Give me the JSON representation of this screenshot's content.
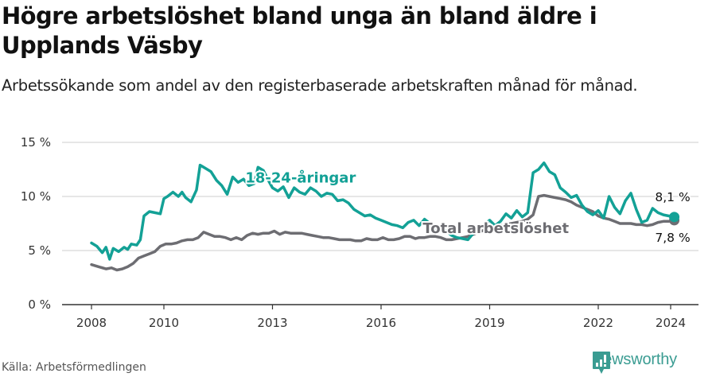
{
  "header": {
    "title": "Högre arbetslöshet bland unga än bland äldre i Upplands Väsby",
    "subtitle": "Arbetssökande som andel av den registerbaserade arbetskraften månad för månad."
  },
  "footer": {
    "source": "Källa: Arbetsförmedlingen",
    "brand": "Newsworthy",
    "brand_icon": "bar-chart-speech-bubble-icon",
    "brand_color": "#3a9c92"
  },
  "chart_data": {
    "type": "line",
    "title": "Högre arbetslöshet bland unga än bland äldre i Upplands Väsby",
    "subtitle": "Arbetssökande som andel av den registerbaserade arbetskraften månad för månad.",
    "xlabel": "",
    "ylabel": "",
    "ylim": [
      0,
      15
    ],
    "xlim": [
      2007.5,
      2024.8
    ],
    "grid": true,
    "y_ticks": [
      0,
      5,
      10,
      15
    ],
    "y_tick_labels": [
      "0 %",
      "5 %",
      "10 %",
      "15 %"
    ],
    "x_ticks": [
      2008,
      2010,
      2013,
      2016,
      2019,
      2022,
      2024
    ],
    "x_tick_labels": [
      "2008",
      "2010",
      "2013",
      "2016",
      "2019",
      "2022",
      "2024"
    ],
    "series": [
      {
        "name": "18-24-åringar",
        "color": "#13a196",
        "label_pos": [
          2012.25,
          11.3
        ],
        "end_label": "8,1 %",
        "x": [
          2008.0,
          2008.15,
          2008.3,
          2008.4,
          2008.5,
          2008.6,
          2008.75,
          2008.9,
          2009.0,
          2009.1,
          2009.25,
          2009.35,
          2009.45,
          2009.6,
          2009.75,
          2009.9,
          2010.0,
          2010.1,
          2010.25,
          2010.4,
          2010.5,
          2010.6,
          2010.75,
          2010.9,
          2011.0,
          2011.15,
          2011.3,
          2011.45,
          2011.6,
          2011.75,
          2011.9,
          2012.05,
          2012.2,
          2012.35,
          2012.5,
          2012.6,
          2012.75,
          2012.9,
          2013.0,
          2013.15,
          2013.3,
          2013.45,
          2013.6,
          2013.75,
          2013.9,
          2014.05,
          2014.2,
          2014.35,
          2014.5,
          2014.65,
          2014.8,
          2014.95,
          2015.1,
          2015.25,
          2015.4,
          2015.55,
          2015.7,
          2015.85,
          2016.0,
          2016.15,
          2016.3,
          2016.45,
          2016.6,
          2016.75,
          2016.9,
          2017.05,
          2017.2,
          2017.35,
          2017.5,
          2017.65,
          2017.8,
          2017.95,
          2018.1,
          2018.25,
          2018.4,
          2018.55,
          2018.7,
          2018.85,
          2019.0,
          2019.15,
          2019.3,
          2019.45,
          2019.6,
          2019.75,
          2019.9,
          2020.05,
          2020.2,
          2020.35,
          2020.5,
          2020.65,
          2020.8,
          2020.95,
          2021.1,
          2021.25,
          2021.4,
          2021.55,
          2021.7,
          2021.85,
          2022.0,
          2022.15,
          2022.3,
          2022.45,
          2022.6,
          2022.75,
          2022.9,
          2023.05,
          2023.2,
          2023.35,
          2023.5,
          2023.65,
          2023.8,
          2023.95,
          2024.1
        ],
        "values": [
          5.7,
          5.4,
          4.8,
          5.3,
          4.2,
          5.2,
          4.9,
          5.3,
          5.1,
          5.6,
          5.5,
          6.0,
          8.2,
          8.6,
          8.5,
          8.4,
          9.8,
          10.0,
          10.4,
          10.0,
          10.4,
          9.9,
          9.5,
          10.6,
          12.9,
          12.6,
          12.3,
          11.5,
          11.0,
          10.2,
          11.8,
          11.3,
          11.6,
          11.0,
          11.2,
          12.7,
          12.4,
          11.4,
          10.8,
          10.5,
          10.9,
          9.9,
          10.8,
          10.4,
          10.2,
          10.8,
          10.5,
          10.0,
          10.3,
          10.2,
          9.6,
          9.7,
          9.4,
          8.8,
          8.5,
          8.2,
          8.3,
          8.0,
          7.8,
          7.6,
          7.4,
          7.3,
          7.1,
          7.6,
          7.8,
          7.3,
          7.9,
          7.5,
          7.0,
          7.2,
          6.8,
          6.4,
          6.2,
          6.1,
          6.0,
          6.6,
          7.0,
          7.4,
          7.8,
          7.3,
          7.7,
          8.4,
          8.0,
          8.7,
          8.1,
          8.5,
          12.2,
          12.5,
          13.1,
          12.3,
          12.0,
          10.8,
          10.4,
          9.9,
          10.1,
          9.2,
          8.6,
          8.3,
          8.7,
          8.0,
          10.0,
          9.0,
          8.4,
          9.6,
          10.3,
          8.8,
          7.6,
          7.8,
          8.9,
          8.5,
          8.3,
          8.2,
          8.1
        ]
      },
      {
        "name": "Total arbetslöshet",
        "color": "#6d6d72",
        "label_pos": [
          2017.15,
          6.6
        ],
        "end_label": "7,8 %",
        "x": [
          2008.0,
          2008.2,
          2008.4,
          2008.55,
          2008.7,
          2008.85,
          2009.0,
          2009.15,
          2009.3,
          2009.45,
          2009.6,
          2009.75,
          2009.9,
          2010.05,
          2010.2,
          2010.35,
          2010.5,
          2010.65,
          2010.8,
          2010.95,
          2011.1,
          2011.25,
          2011.4,
          2011.55,
          2011.7,
          2011.85,
          2012.0,
          2012.15,
          2012.3,
          2012.45,
          2012.6,
          2012.75,
          2012.9,
          2013.05,
          2013.2,
          2013.35,
          2013.5,
          2013.65,
          2013.8,
          2013.95,
          2014.1,
          2014.25,
          2014.4,
          2014.55,
          2014.7,
          2014.85,
          2015.0,
          2015.15,
          2015.3,
          2015.45,
          2015.6,
          2015.75,
          2015.9,
          2016.05,
          2016.2,
          2016.35,
          2016.5,
          2016.65,
          2016.8,
          2016.95,
          2017.05,
          2017.2,
          2017.35,
          2017.5,
          2017.65,
          2017.8,
          2017.95,
          2018.1,
          2018.25,
          2018.4,
          2018.55,
          2018.7,
          2018.85,
          2019.0,
          2019.15,
          2019.3,
          2019.45,
          2019.6,
          2019.75,
          2019.9,
          2020.05,
          2020.2,
          2020.35,
          2020.5,
          2020.65,
          2020.8,
          2020.95,
          2021.1,
          2021.25,
          2021.4,
          2021.55,
          2021.7,
          2021.85,
          2022.0,
          2022.15,
          2022.3,
          2022.45,
          2022.6,
          2022.75,
          2022.9,
          2023.05,
          2023.2,
          2023.35,
          2023.5,
          2023.65,
          2023.8,
          2023.95,
          2024.1
        ],
        "values": [
          3.7,
          3.5,
          3.3,
          3.4,
          3.2,
          3.3,
          3.5,
          3.8,
          4.3,
          4.5,
          4.7,
          4.9,
          5.4,
          5.6,
          5.6,
          5.7,
          5.9,
          6.0,
          6.0,
          6.2,
          6.7,
          6.5,
          6.3,
          6.3,
          6.2,
          6.0,
          6.2,
          6.0,
          6.4,
          6.6,
          6.5,
          6.6,
          6.6,
          6.8,
          6.5,
          6.7,
          6.6,
          6.6,
          6.6,
          6.5,
          6.4,
          6.3,
          6.2,
          6.2,
          6.1,
          6.0,
          6.0,
          6.0,
          5.9,
          5.9,
          6.1,
          6.0,
          6.0,
          6.2,
          6.0,
          6.0,
          6.1,
          6.3,
          6.3,
          6.1,
          6.2,
          6.2,
          6.3,
          6.3,
          6.2,
          6.0,
          6.0,
          6.1,
          6.2,
          6.3,
          6.5,
          6.7,
          6.9,
          7.1,
          7.2,
          7.3,
          7.4,
          7.5,
          7.6,
          7.7,
          7.9,
          8.3,
          10.0,
          10.1,
          10.0,
          9.9,
          9.8,
          9.7,
          9.5,
          9.2,
          9.0,
          8.8,
          8.6,
          8.2,
          8.0,
          7.9,
          7.7,
          7.5,
          7.5,
          7.5,
          7.4,
          7.4,
          7.3,
          7.4,
          7.6,
          7.7,
          7.7,
          7.8
        ]
      }
    ]
  }
}
